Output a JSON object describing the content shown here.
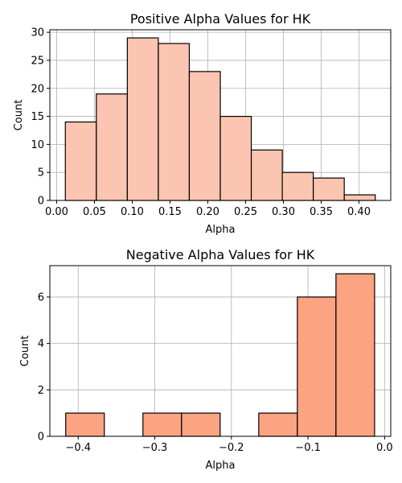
{
  "chart_data": [
    {
      "type": "bar",
      "title": "Positive Alpha Values for HK",
      "xlabel": "Alpha",
      "ylabel": "Count",
      "bin_edges": [
        0.0115,
        0.0525,
        0.0935,
        0.1345,
        0.1755,
        0.2165,
        0.2575,
        0.2985,
        0.3395,
        0.3805,
        0.4215
      ],
      "values": [
        14,
        19,
        29,
        28,
        23,
        15,
        9,
        5,
        4,
        1
      ],
      "xlim": [
        -0.009,
        0.442
      ],
      "ylim": [
        0,
        30.45
      ],
      "xticks": [
        0.0,
        0.05,
        0.1,
        0.15,
        0.2,
        0.25,
        0.3,
        0.35,
        0.4
      ],
      "xtick_labels": [
        "0.00",
        "0.05",
        "0.10",
        "0.15",
        "0.20",
        "0.25",
        "0.30",
        "0.35",
        "0.40"
      ],
      "yticks": [
        0,
        5,
        10,
        15,
        20,
        25,
        30
      ],
      "ytick_labels": [
        "0",
        "5",
        "10",
        "15",
        "20",
        "25",
        "30"
      ],
      "grid": true,
      "bar_color": "#fcc5b1"
    },
    {
      "type": "bar",
      "title": "Negative Alpha Values for HK",
      "xlabel": "Alpha",
      "ylabel": "Count",
      "bin_edges": [
        -0.4163,
        -0.3659,
        -0.3155,
        -0.2651,
        -0.2147,
        -0.1643,
        -0.1139,
        -0.0635,
        -0.0131
      ],
      "values": [
        1,
        0,
        1,
        1,
        0,
        1,
        6,
        7
      ],
      "xlim": [
        -0.437,
        0.008
      ],
      "ylim": [
        0,
        7.35
      ],
      "xticks": [
        -0.4,
        -0.3,
        -0.2,
        -0.1,
        0.0
      ],
      "xtick_labels": [
        "−0.4",
        "−0.3",
        "−0.2",
        "−0.1",
        "0.0"
      ],
      "yticks": [
        0,
        2,
        4,
        6
      ],
      "ytick_labels": [
        "0",
        "2",
        "4",
        "6"
      ],
      "grid": true,
      "bar_color": "#fca382"
    }
  ]
}
